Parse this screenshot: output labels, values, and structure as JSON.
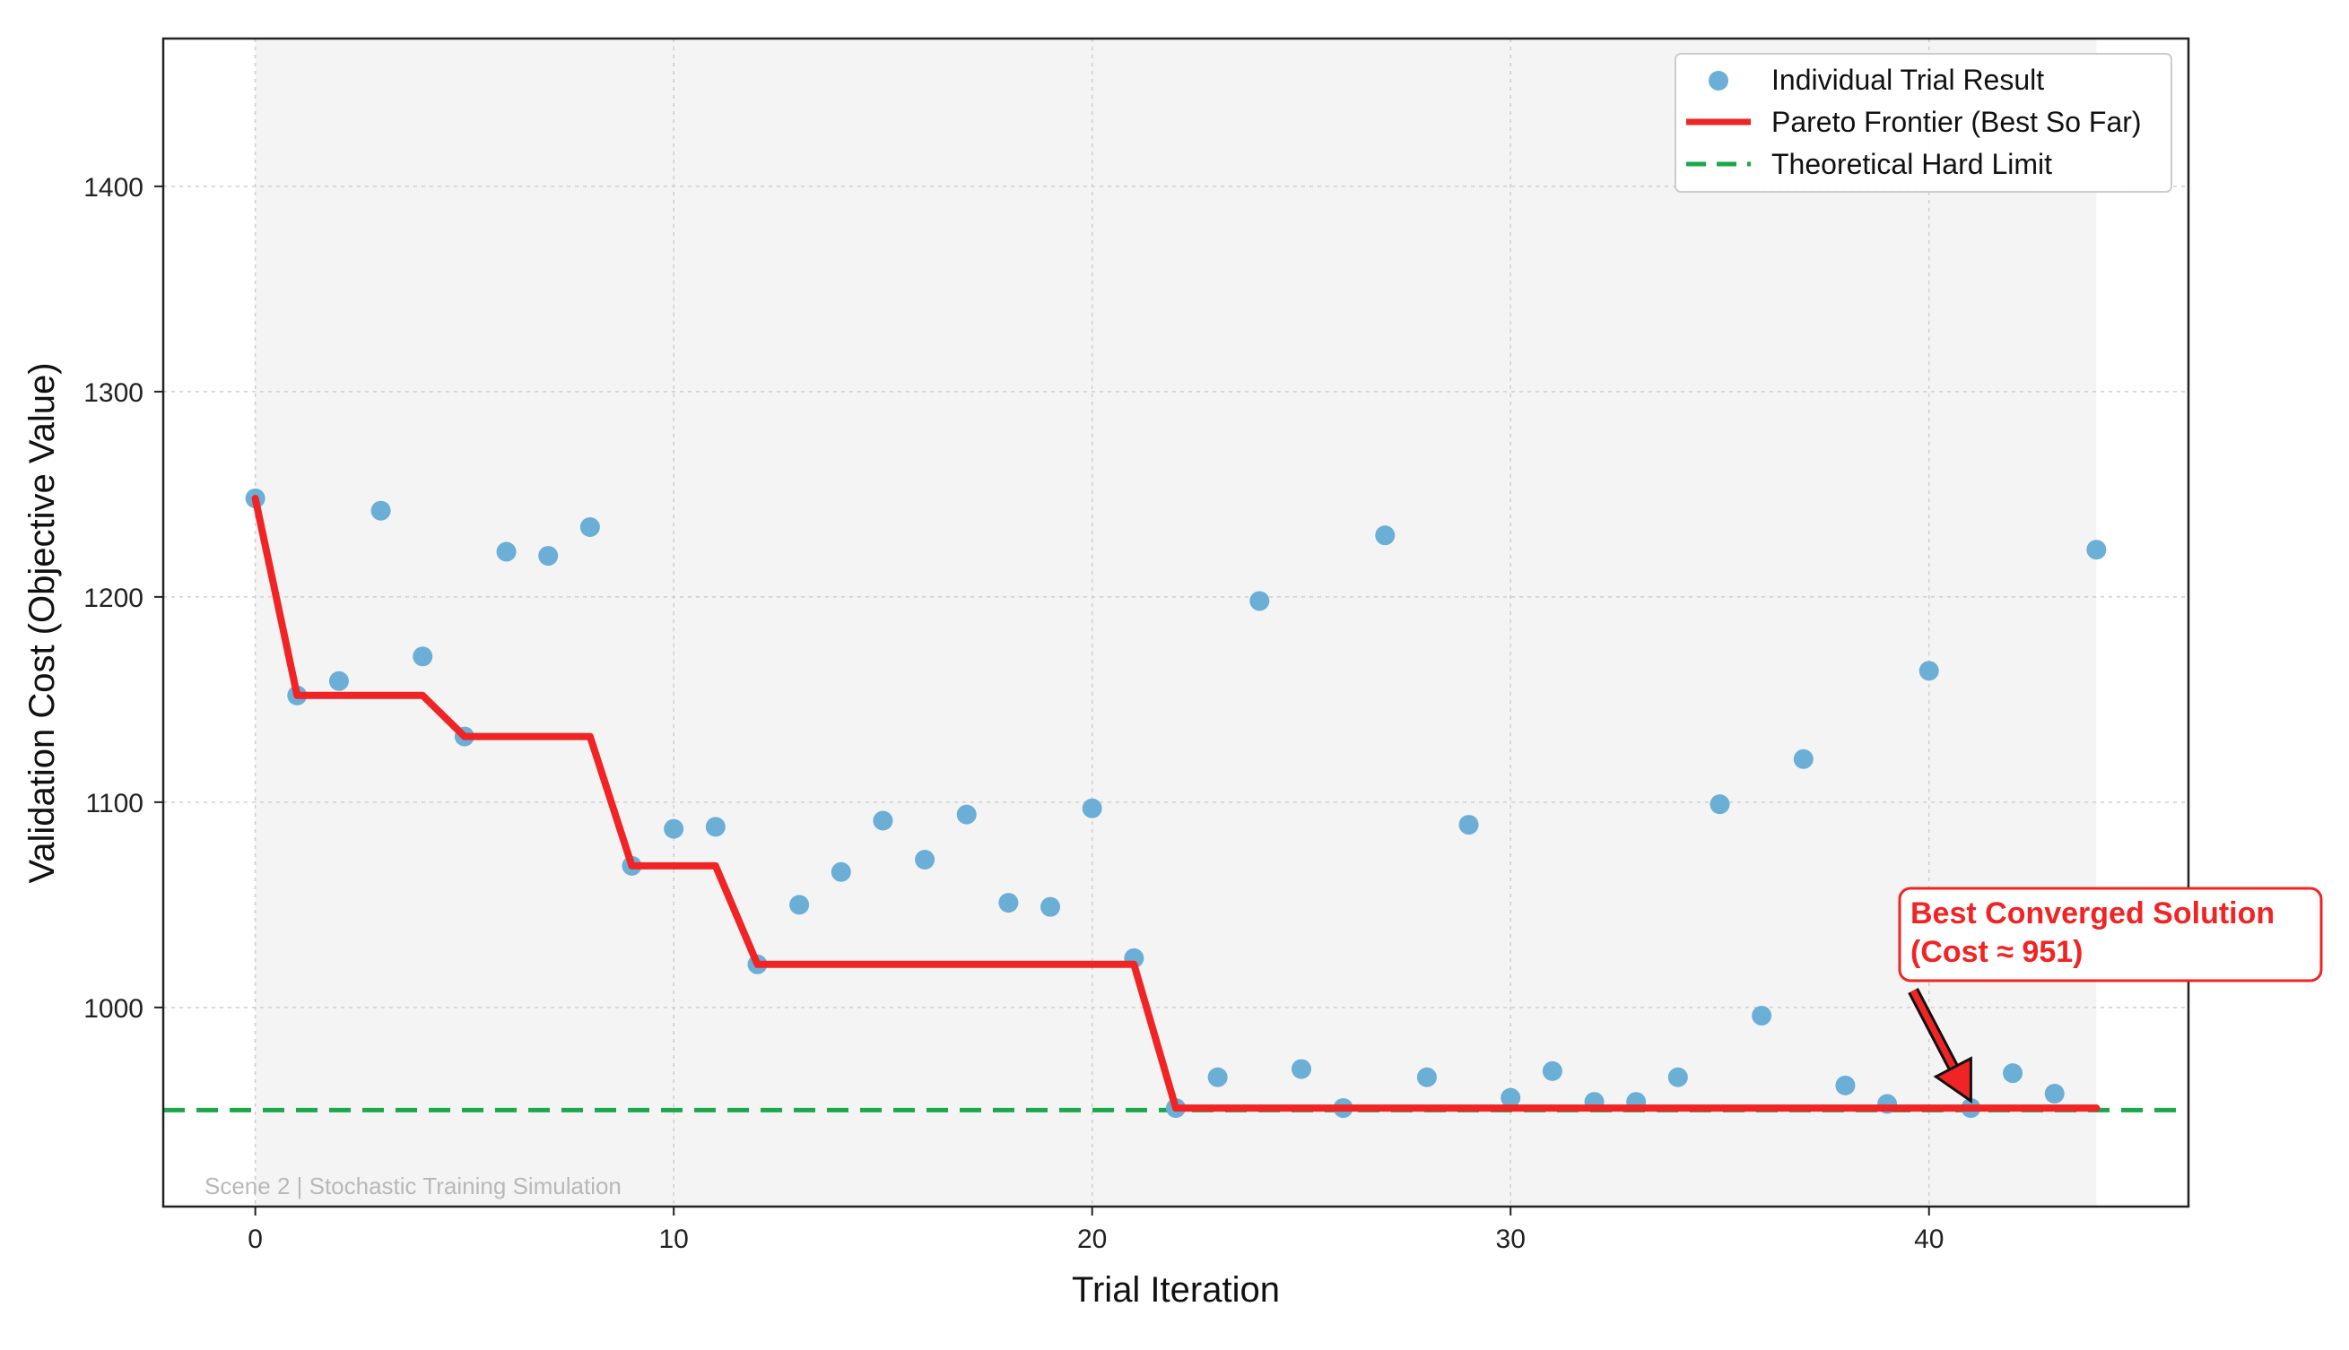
{
  "chart_data": {
    "type": "line",
    "title": "",
    "xlabel": "Trial Iteration",
    "ylabel": "Validation Cost (Objective Value)",
    "xlim": [
      -2.2,
      46.2
    ],
    "ylim": [
      903,
      1472
    ],
    "x_ticks": [
      0,
      10,
      20,
      30,
      40
    ],
    "y_ticks": [
      1000,
      1100,
      1200,
      1300,
      1400
    ],
    "grid": true,
    "legend_position": "top-right",
    "shaded_region_x": [
      0,
      44
    ],
    "series": [
      {
        "name": "Individual Trial Result",
        "kind": "scatter",
        "color": "#6baed6",
        "x": [
          0,
          1,
          2,
          3,
          4,
          5,
          6,
          7,
          8,
          9,
          10,
          11,
          12,
          13,
          14,
          15,
          16,
          17,
          18,
          19,
          20,
          21,
          22,
          23,
          24,
          25,
          26,
          27,
          28,
          29,
          30,
          31,
          32,
          33,
          34,
          35,
          36,
          37,
          38,
          39,
          40,
          41,
          42,
          43,
          44
        ],
        "y": [
          1248,
          1152,
          1159,
          1242,
          1171,
          1132,
          1222,
          1220,
          1234,
          1069,
          1087,
          1088,
          1021,
          1050,
          1066,
          1091,
          1072,
          1094,
          1051,
          1049,
          1097,
          1024,
          951,
          966,
          1198,
          970,
          951,
          1230,
          966,
          1089,
          956,
          969,
          954,
          954,
          966,
          1099,
          996,
          1121,
          962,
          953,
          1164,
          951,
          968,
          958,
          1223
        ]
      },
      {
        "name": "Pareto Frontier (Best So Far)",
        "kind": "line",
        "color": "#f02424",
        "x": [
          0,
          1,
          2,
          3,
          4,
          5,
          6,
          7,
          8,
          9,
          10,
          11,
          12,
          13,
          14,
          15,
          16,
          17,
          18,
          19,
          20,
          21,
          22,
          23,
          24,
          25,
          26,
          27,
          28,
          29,
          30,
          31,
          32,
          33,
          34,
          35,
          36,
          37,
          38,
          39,
          40,
          41,
          42,
          43,
          44
        ],
        "y": [
          1248,
          1152,
          1152,
          1152,
          1152,
          1132,
          1132,
          1132,
          1132,
          1069,
          1069,
          1069,
          1021,
          1021,
          1021,
          1021,
          1021,
          1021,
          1021,
          1021,
          1021,
          1021,
          951,
          951,
          951,
          951,
          951,
          951,
          951,
          951,
          951,
          951,
          951,
          951,
          951,
          951,
          951,
          951,
          951,
          951,
          951,
          951,
          951,
          951,
          951
        ]
      },
      {
        "name": "Theoretical Hard Limit",
        "kind": "hline",
        "color": "#1aa84a",
        "y": 950
      }
    ],
    "annotations": [
      {
        "text_line1": "Best Converged Solution",
        "text_line2": "(Cost ≈ 951)",
        "x": 41,
        "y": 951,
        "color": "#f02424"
      }
    ],
    "footer_text": "Scene 2 | Stochastic Training Simulation"
  }
}
